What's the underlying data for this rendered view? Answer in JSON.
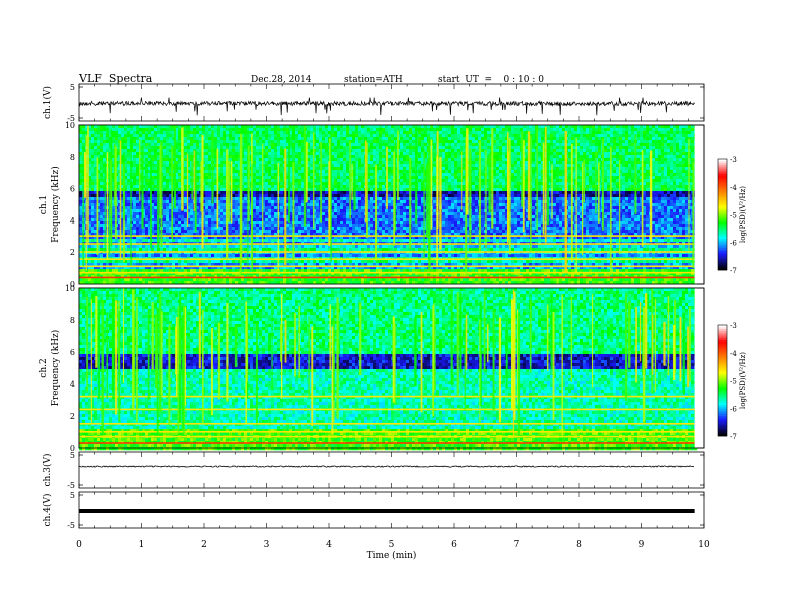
{
  "header": {
    "title": "VLF  Spectra",
    "date": "Dec.28, 2014",
    "station": "station=ATH",
    "start": "start  UT  =    0 : 10 : 0"
  },
  "chart_data": [
    {
      "type": "line",
      "ylabel": "ch.1(V)",
      "ylim": [
        -5,
        5
      ],
      "ytick_labels": [
        "5",
        "-5"
      ],
      "signal": "noisy waveform around -0.5 V with sparse negative spikes"
    },
    {
      "type": "heatmap",
      "ylabel_top": "ch.1",
      "ylabel": "Frequency  (kHz)",
      "ylim": [
        0,
        10
      ],
      "ytick_labels": [
        "0",
        "2",
        "4",
        "6",
        "8",
        "10"
      ],
      "colorbar": {
        "label": "log(PSD)(V²/Hz)",
        "range": [
          -7,
          -3
        ],
        "tick_labels": [
          "-3",
          "-4",
          "-5",
          "-6",
          "-7"
        ]
      }
    },
    {
      "type": "heatmap",
      "ylabel_top": "ch.2",
      "ylabel": "Frequency  (kHz)",
      "ylim": [
        0,
        10
      ],
      "ytick_labels": [
        "0",
        "2",
        "4",
        "6",
        "8",
        "10"
      ],
      "colorbar": {
        "label": "log(PSD)(V²/Hz)",
        "range": [
          -7,
          -3
        ],
        "tick_labels": [
          "-3",
          "-4",
          "-5",
          "-6",
          "-7"
        ]
      }
    },
    {
      "type": "line",
      "ylabel": "ch.3(V)",
      "ylim": [
        -5,
        5
      ],
      "ytick_labels": [
        "5",
        "-5"
      ],
      "signal": "flat trace near -1 V"
    },
    {
      "type": "line",
      "ylabel": "ch.4(V)",
      "ylim": [
        -5,
        5
      ],
      "ytick_labels": [
        "5",
        "-5"
      ],
      "signal": "thick flat trace near 0 V"
    }
  ],
  "xaxis": {
    "label": "Time  (min)",
    "range": [
      0,
      10
    ],
    "data_end": 9.85,
    "tick_labels": [
      "0",
      "1",
      "2",
      "3",
      "4",
      "5",
      "6",
      "7",
      "8",
      "9",
      "10"
    ]
  },
  "colormap": [
    "#000000",
    "#1a1aff",
    "#00ffff",
    "#00ff00",
    "#ffff00",
    "#ff7f00",
    "#ff0000",
    "#ffffff"
  ]
}
